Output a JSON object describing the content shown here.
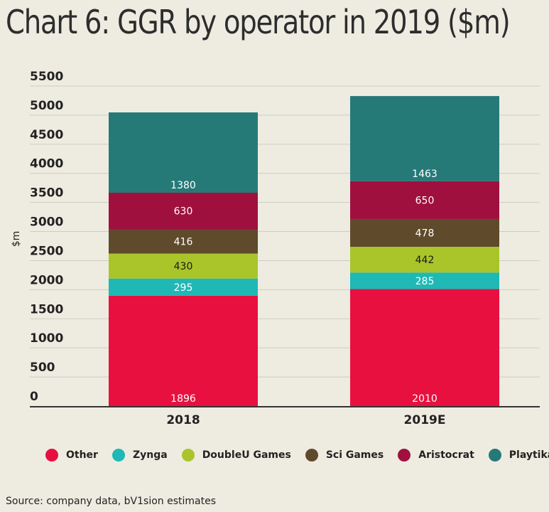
{
  "chart_data": {
    "type": "bar",
    "stacked": true,
    "title": "Chart 6: GGR by operator in 2019 ($m)",
    "xlabel": "",
    "ylabel": "$m",
    "ylim": [
      0,
      5500
    ],
    "yticks": [
      0,
      500,
      1000,
      1500,
      2000,
      2500,
      3000,
      3500,
      4000,
      4500,
      5000,
      5500
    ],
    "categories": [
      "2018",
      "2019E"
    ],
    "series": [
      {
        "name": "Other",
        "color": "#e8103f",
        "label_color": "#ffffff",
        "values": [
          1896,
          2010
        ]
      },
      {
        "name": "Zynga",
        "color": "#1fb8b5",
        "label_color": "#ffffff",
        "values": [
          295,
          285
        ]
      },
      {
        "name": "DoubleU Games",
        "color": "#a9c52a",
        "label_color": "#1a1a1a",
        "values": [
          430,
          442
        ]
      },
      {
        "name": "Sci Games",
        "color": "#5f4a2b",
        "label_color": "#ffffff",
        "values": [
          416,
          478
        ]
      },
      {
        "name": "Aristocrat",
        "color": "#a0103f",
        "label_color": "#ffffff",
        "values": [
          630,
          650
        ]
      },
      {
        "name": "Playtika",
        "color": "#257a78",
        "label_color": "#ffffff",
        "values": [
          1380,
          1463
        ]
      }
    ],
    "legend_position": "bottom"
  },
  "source": "Source: company data, bV1sion estimates"
}
